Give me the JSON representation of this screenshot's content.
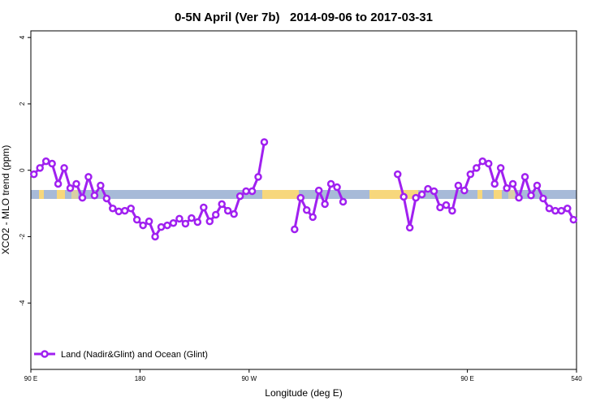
{
  "chart_data": {
    "type": "line",
    "title": "0-5N April (Ver 7b)   2014-09-06 to 2017-03-31",
    "xlabel": "Longitude (deg E)",
    "ylabel": "XCO2 - MLO trend (ppm)",
    "xlim": [
      90,
      540
    ],
    "ylim": [
      -6,
      4.2
    ],
    "xticks": [
      {
        "value": 90,
        "label": "90 E"
      },
      180,
      {
        "value": 270,
        "label": "90 W"
      },
      {
        "value": 450,
        "label": "90 E"
      },
      540
    ],
    "yticks": [
      -4,
      -2,
      0,
      2,
      4
    ],
    "legend": "bottom-left",
    "x": [
      92.5,
      97.5,
      102.5,
      107.5,
      112.5,
      117.5,
      122.5,
      127.5,
      132.5,
      137.5,
      142.5,
      147.5,
      152.5,
      157.5,
      162.5,
      167.5,
      172.5,
      177.5,
      182.5,
      187.5,
      192.5,
      197.5,
      202.5,
      207.5,
      212.5,
      217.5,
      222.5,
      227.5,
      232.5,
      237.5,
      242.5,
      247.5,
      252.5,
      257.5,
      262.5,
      267.5,
      272.5,
      277.5,
      282.5,
      295,
      307.5,
      312.5,
      317.5,
      322.5,
      327.5,
      332.5,
      337.5,
      342.5,
      347.5,
      370,
      392.5,
      397.5,
      402.5,
      407.5,
      412.5,
      417.5,
      422.5,
      427.5,
      432.5,
      437.5,
      442.5,
      447.5,
      452.5,
      457.5,
      462.5,
      467.5,
      472.5,
      477.5,
      482.5,
      487.5,
      492.5,
      497.5,
      502.5,
      507.5,
      512.5,
      517.5,
      522.5,
      527.5,
      532.5,
      537.5
    ],
    "series": [
      {
        "name": "Land (Nadir&Glint) and Ocean (Glint)",
        "color": "#a020f0",
        "values": [
          -0.12,
          0.07,
          0.27,
          0.2,
          -0.41,
          0.07,
          -0.54,
          -0.41,
          -0.83,
          -0.2,
          -0.76,
          -0.46,
          -0.85,
          -1.15,
          -1.24,
          -1.22,
          -1.15,
          -1.49,
          -1.66,
          -1.54,
          -2.0,
          -1.71,
          -1.66,
          -1.59,
          -1.46,
          -1.61,
          -1.44,
          -1.56,
          -1.12,
          -1.54,
          -1.34,
          -1.02,
          -1.22,
          -1.32,
          -0.78,
          -0.63,
          -0.63,
          -0.2,
          0.85,
          null,
          -1.78,
          -0.83,
          -1.2,
          -1.41,
          -0.61,
          -1.02,
          -0.41,
          -0.51,
          -0.95,
          null,
          -0.12,
          -0.8,
          -1.73,
          -0.83,
          -0.73,
          -0.56,
          -0.63,
          -1.12,
          -1.05,
          -1.22,
          -0.46,
          -0.61,
          -0.12,
          0.07,
          0.27,
          0.2,
          -0.41,
          0.07,
          -0.54,
          -0.41,
          -0.83,
          -0.2,
          -0.76,
          -0.46,
          -0.85,
          -1.15,
          -1.22,
          -1.22,
          -1.15,
          -1.49
        ]
      }
    ]
  }
}
